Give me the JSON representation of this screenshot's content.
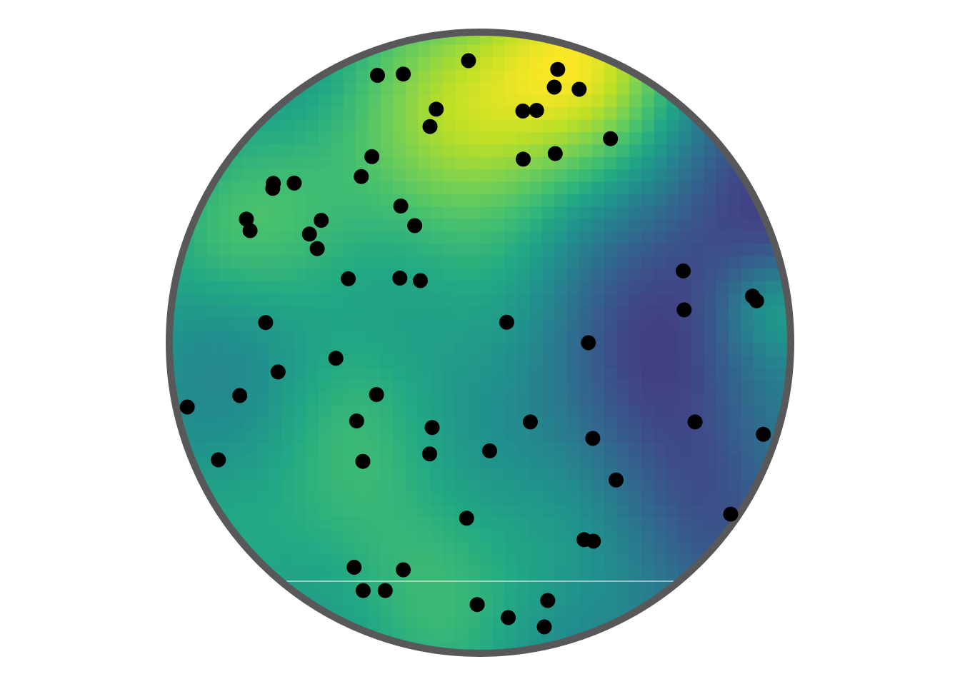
{
  "chart_data": {
    "type": "scatter",
    "background": "interpolated-field",
    "colormap": "viridis",
    "title": "",
    "xlabel": "",
    "ylabel": "",
    "xlim": [
      -1,
      1
    ],
    "ylim": [
      -1,
      1
    ],
    "grid": false,
    "legend": "none",
    "boundary": {
      "shape": "circle",
      "center": [
        0,
        0
      ],
      "radius": 1,
      "color": "#58585a"
    },
    "marker_color": "#000000",
    "points": [
      {
        "x": -0.037,
        "y": 0.908
      },
      {
        "x": -0.33,
        "y": 0.861
      },
      {
        "x": -0.247,
        "y": 0.865
      },
      {
        "x": 0.25,
        "y": 0.88
      },
      {
        "x": 0.239,
        "y": 0.823
      },
      {
        "x": 0.319,
        "y": 0.816
      },
      {
        "x": -0.141,
        "y": 0.752
      },
      {
        "x": -0.161,
        "y": 0.696
      },
      {
        "x": 0.138,
        "y": 0.746
      },
      {
        "x": 0.182,
        "y": 0.748
      },
      {
        "x": 0.42,
        "y": 0.657
      },
      {
        "x": -0.348,
        "y": 0.599
      },
      {
        "x": 0.139,
        "y": 0.591
      },
      {
        "x": 0.242,
        "y": 0.609
      },
      {
        "x": -0.382,
        "y": 0.535
      },
      {
        "x": -0.665,
        "y": 0.513
      },
      {
        "x": -0.667,
        "y": 0.497
      },
      {
        "x": -0.598,
        "y": 0.514
      },
      {
        "x": -0.255,
        "y": 0.44
      },
      {
        "x": -0.21,
        "y": 0.377
      },
      {
        "x": -0.752,
        "y": 0.398
      },
      {
        "x": -0.74,
        "y": 0.361
      },
      {
        "x": -0.511,
        "y": 0.394
      },
      {
        "x": -0.549,
        "y": 0.35
      },
      {
        "x": -0.524,
        "y": 0.303
      },
      {
        "x": -0.424,
        "y": 0.206
      },
      {
        "x": -0.258,
        "y": 0.208
      },
      {
        "x": -0.192,
        "y": 0.2
      },
      {
        "x": 0.654,
        "y": 0.231
      },
      {
        "x": 0.657,
        "y": 0.106
      },
      {
        "x": 0.877,
        "y": 0.15
      },
      {
        "x": 0.89,
        "y": 0.135
      },
      {
        "x": 0.086,
        "y": 0.066
      },
      {
        "x": 0.349,
        "y": 0.0
      },
      {
        "x": -0.69,
        "y": 0.065
      },
      {
        "x": -0.464,
        "y": -0.05
      },
      {
        "x": -0.65,
        "y": -0.094
      },
      {
        "x": -0.333,
        "y": -0.167
      },
      {
        "x": -0.773,
        "y": -0.17
      },
      {
        "x": -0.942,
        "y": -0.207
      },
      {
        "x": -0.397,
        "y": -0.252
      },
      {
        "x": 0.162,
        "y": -0.255
      },
      {
        "x": -0.154,
        "y": -0.273
      },
      {
        "x": 0.363,
        "y": -0.308
      },
      {
        "x": 0.692,
        "y": -0.255
      },
      {
        "x": 0.912,
        "y": -0.295
      },
      {
        "x": -0.162,
        "y": -0.358
      },
      {
        "x": 0.031,
        "y": -0.348
      },
      {
        "x": -0.842,
        "y": -0.377
      },
      {
        "x": -0.377,
        "y": -0.382
      },
      {
        "x": 0.438,
        "y": -0.442
      },
      {
        "x": 0.807,
        "y": -0.552
      },
      {
        "x": -0.043,
        "y": -0.565
      },
      {
        "x": 0.335,
        "y": -0.634
      },
      {
        "x": 0.365,
        "y": -0.639
      },
      {
        "x": -0.405,
        "y": -0.723
      },
      {
        "x": -0.247,
        "y": -0.731
      },
      {
        "x": -0.376,
        "y": -0.798
      },
      {
        "x": -0.305,
        "y": -0.798
      },
      {
        "x": -0.009,
        "y": -0.843
      },
      {
        "x": 0.218,
        "y": -0.83
      },
      {
        "x": 0.091,
        "y": -0.885
      },
      {
        "x": 0.207,
        "y": -0.915
      }
    ]
  }
}
